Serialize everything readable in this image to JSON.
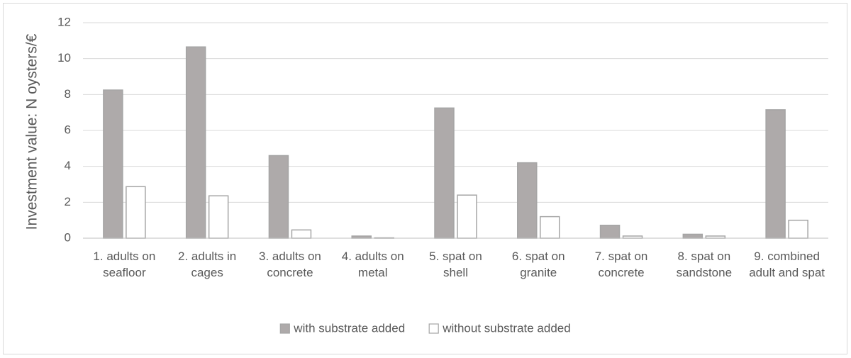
{
  "chart_data": {
    "type": "bar",
    "y_label": "Investment value: N oysters/€",
    "categories": [
      "1. adults on seafloor",
      "2. adults in cages",
      "3. adults on concrete",
      "4. adults on metal",
      "5. spat on shell",
      "6. spat on granite",
      "7. spat on concrete",
      "8. spat on sandstone",
      "9. combined adult and spat"
    ],
    "series": [
      {
        "name": "with substrate added",
        "color": "#aeaaaa",
        "values": [
          8.25,
          10.65,
          4.6,
          0.12,
          7.25,
          4.2,
          0.72,
          0.22,
          7.15
        ]
      },
      {
        "name": "without substrate added",
        "color": "#ffffff",
        "values": [
          2.87,
          2.36,
          0.46,
          0.02,
          2.4,
          1.2,
          0.12,
          0.12,
          1.0
        ]
      }
    ],
    "ylim": [
      0,
      12
    ],
    "yticks": [
      0,
      2,
      4,
      6,
      8,
      10,
      12
    ],
    "grid": true,
    "legend": "bottom"
  }
}
